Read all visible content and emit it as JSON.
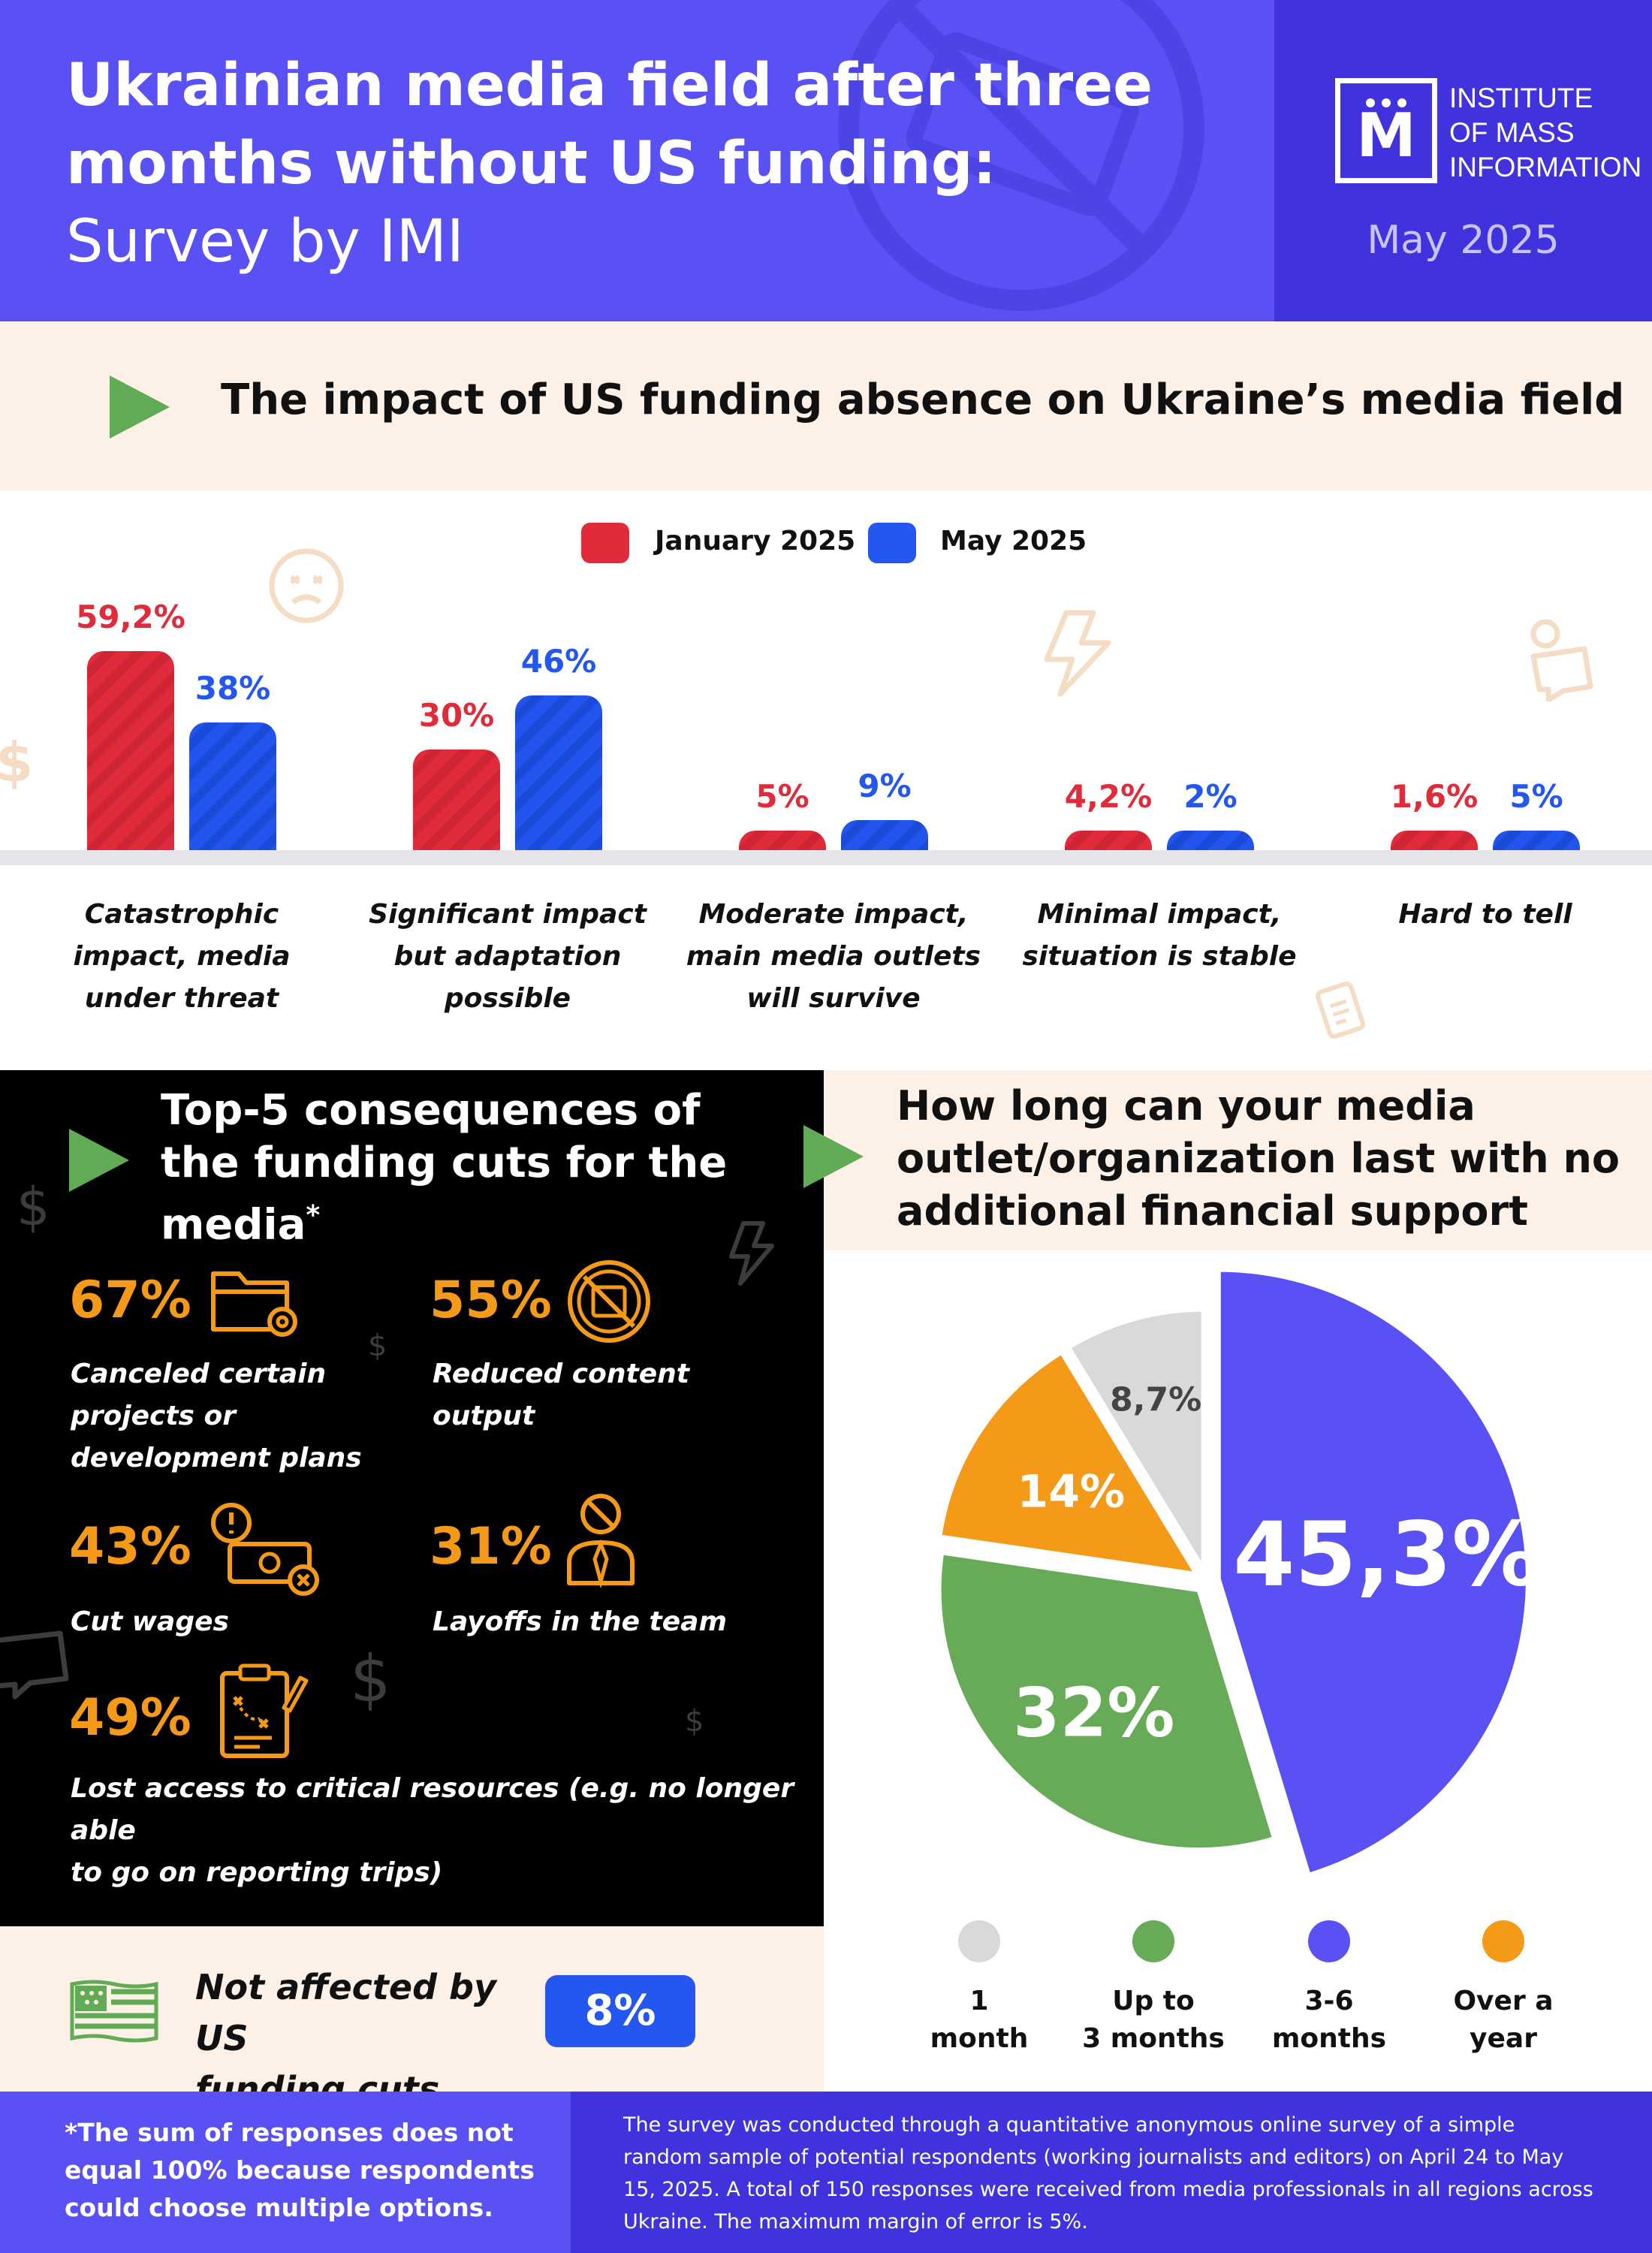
{
  "header": {
    "title_line1": "Ukrainian media field after three",
    "title_line2": "months without US funding:",
    "title_line3": "Survey by IMI",
    "logo_letter": "M",
    "logo_line1": "INSTITUTE",
    "logo_line2": "OF MASS",
    "logo_line3": "INFORMATION",
    "date": "May 2025"
  },
  "section1": {
    "title": "The impact of US funding absence on Ukraine’s media field"
  },
  "chart_data": [
    {
      "type": "bar",
      "title": "The impact of US funding absence on Ukraine’s media field",
      "categories": [
        "Catastrophic impact, media under threat",
        "Significant impact but adaptation possible",
        "Moderate impact, main media outlets will survive",
        "Minimal impact, situation is stable",
        "Hard to tell"
      ],
      "category_lines": [
        [
          "Catastrophic",
          "impact, media",
          "under threat"
        ],
        [
          "Significant impact",
          "but adaptation",
          "possible"
        ],
        [
          "Moderate impact,",
          "main media outlets",
          "will survive"
        ],
        [
          "Minimal impact,",
          "situation is stable"
        ],
        [
          "Hard to tell"
        ]
      ],
      "series": [
        {
          "name": "January 2025",
          "color": "#e02b3b",
          "values": [
            59.2,
            30,
            5,
            4.2,
            1.6
          ],
          "labels": [
            "59,2%",
            "30%",
            "5%",
            "4,2%",
            "1,6%"
          ]
        },
        {
          "name": "May 2025",
          "color": "#2456f0",
          "values": [
            38,
            46,
            9,
            2,
            5
          ],
          "labels": [
            "38%",
            "46%",
            "9%",
            "2%",
            "5%"
          ]
        }
      ],
      "ylim": [
        0,
        60
      ],
      "legend": "top-center"
    },
    {
      "type": "pie",
      "title": "How long can your media outlet/organization last with no additional financial support",
      "slices": [
        {
          "label": "1 month",
          "value": 8.7,
          "display": "8,7%",
          "color": "#d9d9d9"
        },
        {
          "label": "Up to 3 months",
          "value": 32,
          "display": "32%",
          "color": "#67ab58"
        },
        {
          "label": "3-6 months",
          "value": 45.3,
          "display": "45,3%",
          "color": "#5a51f5"
        },
        {
          "label": "Over a year",
          "value": 14,
          "display": "14%",
          "color": "#f59a18"
        }
      ],
      "legend": "bottom"
    }
  ],
  "consequences": {
    "title_line1": "Top-5 consequences of",
    "title_line2": "the funding cuts for the",
    "title_line3": "media",
    "title_mark": "*",
    "items": [
      {
        "pct": "67%",
        "lines": [
          "Canceled certain",
          "projects or",
          "development plans"
        ],
        "icon": "folder-gear-icon"
      },
      {
        "pct": "55%",
        "lines": [
          "Reduced content",
          "output"
        ],
        "icon": "no-content-icon"
      },
      {
        "pct": "43%",
        "lines": [
          "Cut wages"
        ],
        "icon": "money-warning-icon"
      },
      {
        "pct": "31%",
        "lines": [
          "Layoffs in the team"
        ],
        "icon": "employee-ban-icon"
      },
      {
        "pct": "49%",
        "lines": [
          "Lost access to critical resources (e.g. no longer able",
          "to go on reporting trips)"
        ],
        "icon": "clipboard-plan-icon"
      }
    ]
  },
  "not_affected": {
    "line1": "Not affected by US",
    "line2": "funding cuts",
    "value": "8%"
  },
  "pie_section": {
    "title_line1": "How long can your media",
    "title_line2": "outlet/organization last with no",
    "title_line3": "additional financial support",
    "legend": [
      {
        "line1": "1",
        "line2": "month",
        "color": "#d9d9d9"
      },
      {
        "line1": "Up to",
        "line2": "3 months",
        "color": "#67ab58"
      },
      {
        "line1": "3-6",
        "line2": "months",
        "color": "#5a51f5"
      },
      {
        "line1": "Over a",
        "line2": "year",
        "color": "#f59a18"
      }
    ]
  },
  "footer": {
    "note_line1": "*The sum of responses does not",
    "note_line2": "equal 100% because respondents",
    "note_line3": "could choose multiple options.",
    "survey_line1": "The survey was conducted through a quantitative anonymous online survey of a simple",
    "survey_line2": "random sample of potential respondents (working journalists and editors) on April 24 to May",
    "survey_line3": "15, 2025. A total of 150 responses were received from media professionals in all regions across",
    "survey_line4": "Ukraine. The maximum margin of error is 5%."
  },
  "colors": {
    "header": "#5a51f5",
    "header_dark": "#4033dd",
    "accent_green": "#62ab56",
    "orange": "#f59a18",
    "cream": "#fdf1e7"
  }
}
